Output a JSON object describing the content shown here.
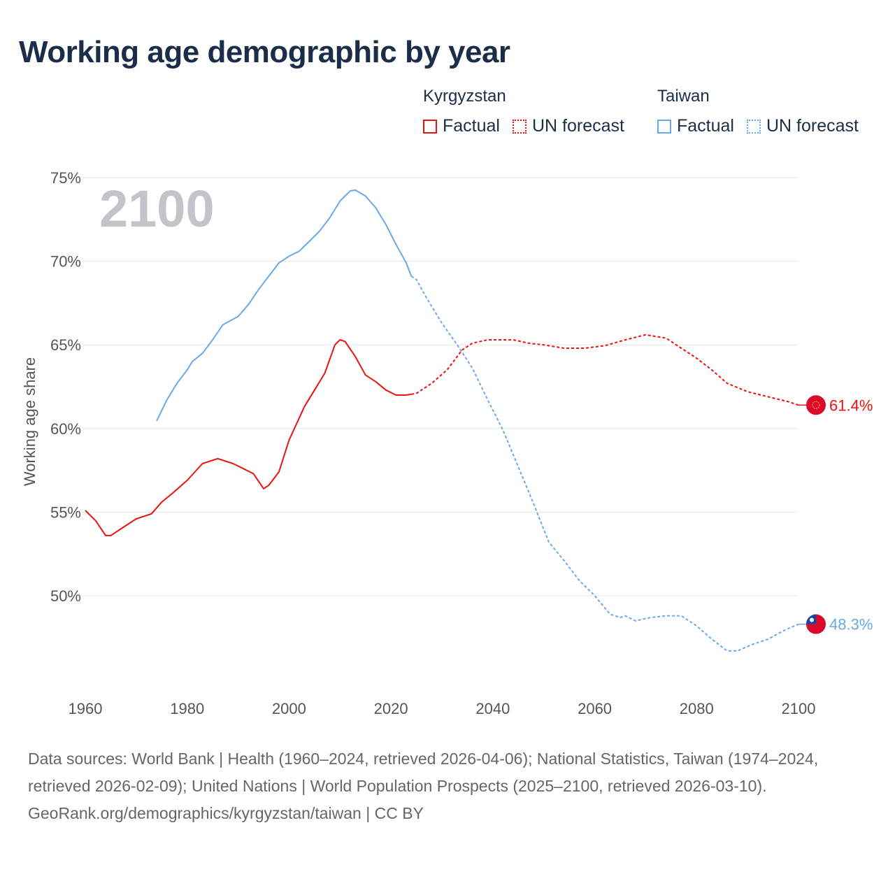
{
  "title": "Working age demographic by year",
  "legend": {
    "groups": [
      {
        "name": "Kyrgyzstan",
        "factual": "Factual",
        "forecast": "UN forecast",
        "color": "#ee1111"
      },
      {
        "name": "Taiwan",
        "factual": "Factual",
        "forecast": "UN forecast",
        "color": "#6aa8e8"
      }
    ]
  },
  "footer": {
    "sources": "Data sources: World Bank | Health (1960–2024, retrieved 2026-04-06); National Statistics, Taiwan (1974–2024, retrieved 2026-02-09); United Nations | World Population Prospects (2025–2100, retrieved 2026-03-10).",
    "credit": "GeoRank.org/demographics/kyrgyzstan/taiwan | CC BY"
  },
  "chart_data": {
    "type": "line",
    "title": "Working age demographic by year",
    "year_label": "2100",
    "xlabel": "",
    "ylabel": "Working age share",
    "xlim": [
      1960,
      2100
    ],
    "ylim": [
      45,
      75
    ],
    "xticks": [
      1960,
      1980,
      2000,
      2020,
      2040,
      2060,
      2080,
      2100
    ],
    "yticks": [
      50,
      55,
      60,
      65,
      70,
      75
    ],
    "ytick_labels": [
      "50%",
      "55%",
      "60%",
      "65%",
      "70%",
      "75%"
    ],
    "grid": true,
    "legend_position": "top-right",
    "series": [
      {
        "name": "Kyrgyzstan",
        "color": "#ee1111",
        "end_label": "61.4%",
        "factual": [
          [
            1960,
            55.1
          ],
          [
            1962,
            54.5
          ],
          [
            1964,
            53.6
          ],
          [
            1965,
            53.6
          ],
          [
            1968,
            54.2
          ],
          [
            1970,
            54.6
          ],
          [
            1973,
            54.9
          ],
          [
            1975,
            55.6
          ],
          [
            1977,
            56.1
          ],
          [
            1980,
            56.9
          ],
          [
            1983,
            57.9
          ],
          [
            1986,
            58.2
          ],
          [
            1989,
            57.9
          ],
          [
            1991,
            57.6
          ],
          [
            1993,
            57.3
          ],
          [
            1995,
            56.4
          ],
          [
            1996,
            56.6
          ],
          [
            1998,
            57.4
          ],
          [
            2000,
            59.3
          ],
          [
            2003,
            61.3
          ],
          [
            2005,
            62.3
          ],
          [
            2007,
            63.3
          ],
          [
            2009,
            65.0
          ],
          [
            2010,
            65.3
          ],
          [
            2011,
            65.2
          ],
          [
            2013,
            64.3
          ],
          [
            2015,
            63.2
          ],
          [
            2017,
            62.8
          ],
          [
            2019,
            62.3
          ],
          [
            2021,
            62.0
          ],
          [
            2023,
            62.0
          ],
          [
            2024,
            62.05
          ]
        ],
        "forecast": [
          [
            2024,
            62.05
          ],
          [
            2025,
            62.1
          ],
          [
            2028,
            62.7
          ],
          [
            2031,
            63.5
          ],
          [
            2034,
            64.7
          ],
          [
            2036,
            65.1
          ],
          [
            2039,
            65.3
          ],
          [
            2044,
            65.3
          ],
          [
            2047,
            65.1
          ],
          [
            2050,
            65.0
          ],
          [
            2054,
            64.8
          ],
          [
            2058,
            64.8
          ],
          [
            2062,
            64.95
          ],
          [
            2066,
            65.3
          ],
          [
            2070,
            65.6
          ],
          [
            2074,
            65.4
          ],
          [
            2077,
            64.8
          ],
          [
            2080,
            64.2
          ],
          [
            2083,
            63.5
          ],
          [
            2086,
            62.7
          ],
          [
            2090,
            62.2
          ],
          [
            2094,
            61.9
          ],
          [
            2098,
            61.6
          ],
          [
            2100,
            61.4
          ]
        ]
      },
      {
        "name": "Taiwan",
        "color": "#6aa8e8",
        "end_label": "48.3%",
        "factual": [
          [
            1974,
            60.45
          ],
          [
            1976,
            61.7
          ],
          [
            1978,
            62.7
          ],
          [
            1980,
            63.5
          ],
          [
            1981,
            64.0
          ],
          [
            1983,
            64.5
          ],
          [
            1985,
            65.3
          ],
          [
            1987,
            66.2
          ],
          [
            1990,
            66.7
          ],
          [
            1992,
            67.4
          ],
          [
            1994,
            68.3
          ],
          [
            1996,
            69.1
          ],
          [
            1998,
            69.9
          ],
          [
            2000,
            70.3
          ],
          [
            2002,
            70.6
          ],
          [
            2004,
            71.2
          ],
          [
            2006,
            71.8
          ],
          [
            2008,
            72.6
          ],
          [
            2010,
            73.6
          ],
          [
            2012,
            74.2
          ],
          [
            2013,
            74.25
          ],
          [
            2015,
            73.9
          ],
          [
            2017,
            73.2
          ],
          [
            2019,
            72.2
          ],
          [
            2021,
            71.0
          ],
          [
            2023,
            69.9
          ],
          [
            2024,
            69.1
          ]
        ],
        "forecast": [
          [
            2024,
            69.1
          ],
          [
            2025,
            68.9
          ],
          [
            2027,
            67.8
          ],
          [
            2030,
            66.3
          ],
          [
            2033,
            65.0
          ],
          [
            2036,
            63.6
          ],
          [
            2039,
            61.7
          ],
          [
            2042,
            59.9
          ],
          [
            2045,
            57.7
          ],
          [
            2048,
            55.5
          ],
          [
            2051,
            53.2
          ],
          [
            2054,
            52.1
          ],
          [
            2057,
            50.9
          ],
          [
            2060,
            50.0
          ],
          [
            2063,
            48.9
          ],
          [
            2065,
            48.7
          ],
          [
            2066,
            48.8
          ],
          [
            2068,
            48.5
          ],
          [
            2071,
            48.7
          ],
          [
            2074,
            48.8
          ],
          [
            2077,
            48.8
          ],
          [
            2080,
            48.2
          ],
          [
            2083,
            47.4
          ],
          [
            2086,
            46.7
          ],
          [
            2088,
            46.7
          ],
          [
            2091,
            47.1
          ],
          [
            2094,
            47.4
          ],
          [
            2097,
            47.9
          ],
          [
            2100,
            48.3
          ]
        ]
      }
    ]
  }
}
